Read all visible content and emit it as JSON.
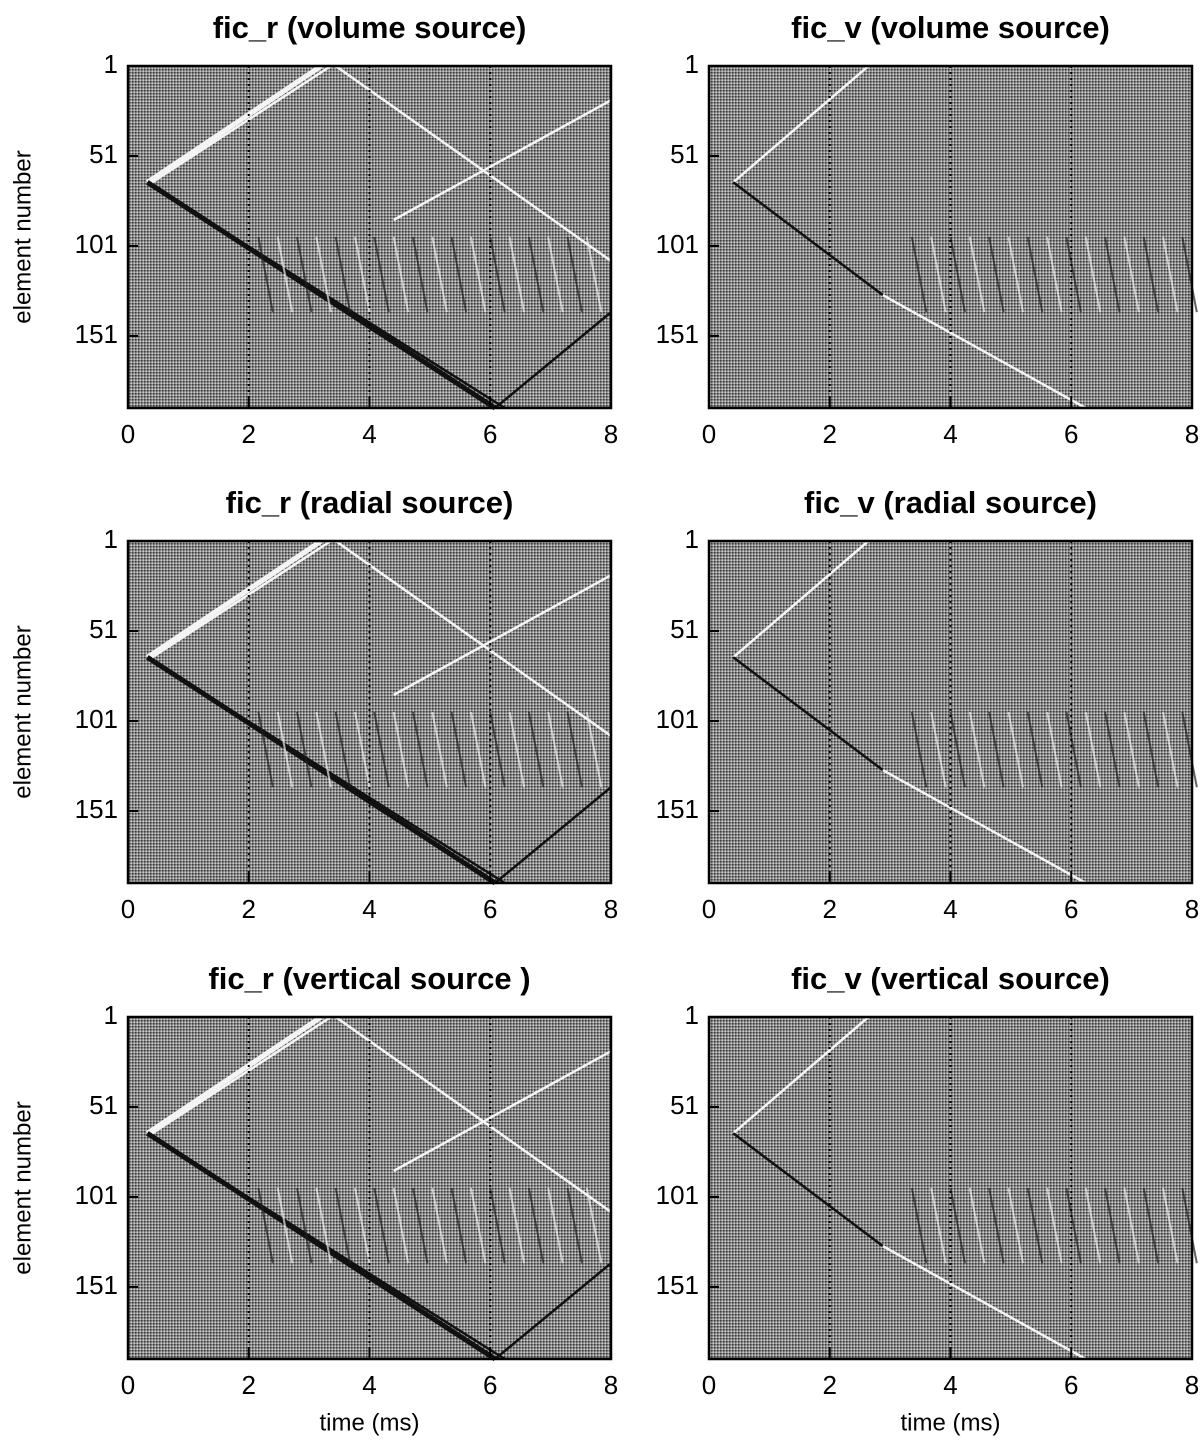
{
  "chart_data": [
    {
      "type": "image",
      "title": "fic_r (volume source)",
      "ylabel": "element number",
      "xlim": [
        0,
        8
      ],
      "ylim": [
        1,
        191
      ],
      "y_inverted": true,
      "xticks": [
        0,
        2,
        4,
        6,
        8
      ],
      "yticks": [
        1,
        51,
        101,
        151
      ],
      "grid": true
    },
    {
      "type": "image",
      "title": "fic_v (volume source)",
      "xlim": [
        0,
        8
      ],
      "ylim": [
        1,
        191
      ],
      "y_inverted": true,
      "xticks": [
        0,
        2,
        4,
        6,
        8
      ],
      "yticks": [
        1,
        51,
        101,
        151
      ],
      "grid": true
    },
    {
      "type": "image",
      "title": "fic_r (radial source)",
      "ylabel": "element number",
      "xlim": [
        0,
        8
      ],
      "ylim": [
        1,
        191
      ],
      "y_inverted": true,
      "xticks": [
        0,
        2,
        4,
        6,
        8
      ],
      "yticks": [
        1,
        51,
        101,
        151
      ],
      "grid": true
    },
    {
      "type": "image",
      "title": "fic_v (radial source)",
      "xlim": [
        0,
        8
      ],
      "ylim": [
        1,
        191
      ],
      "y_inverted": true,
      "xticks": [
        0,
        2,
        4,
        6,
        8
      ],
      "yticks": [
        1,
        51,
        101,
        151
      ],
      "grid": true
    },
    {
      "type": "image",
      "title": "fic_r (vertical source )",
      "ylabel": "element number",
      "xlabel": "time (ms)",
      "xlim": [
        0,
        8
      ],
      "ylim": [
        1,
        191
      ],
      "y_inverted": true,
      "xticks": [
        0,
        2,
        4,
        6,
        8
      ],
      "yticks": [
        1,
        51,
        101,
        151
      ],
      "grid": true
    },
    {
      "type": "image",
      "title": "fic_v (vertical source)",
      "xlabel": "time (ms)",
      "xlim": [
        0,
        8
      ],
      "ylim": [
        1,
        191
      ],
      "y_inverted": true,
      "xticks": [
        0,
        2,
        4,
        6,
        8
      ],
      "yticks": [
        1,
        51,
        101,
        151
      ],
      "grid": true
    }
  ]
}
